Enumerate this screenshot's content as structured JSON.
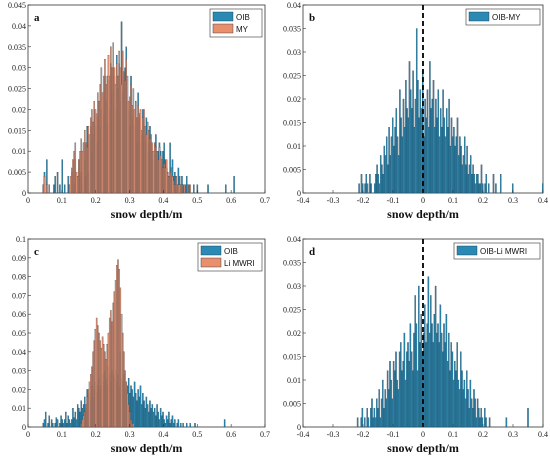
{
  "colors": {
    "blue": "#2a8ab4",
    "orange": "#ea8f6b",
    "edge": "#1b2f3e",
    "axis": "#333333",
    "zero_line": "#000000"
  },
  "chart_data": [
    {
      "type": "bar",
      "panel_label": "a",
      "xlabel": "snow depth/m",
      "xlim": [
        0,
        0.7
      ],
      "ylim": [
        0,
        0.045
      ],
      "xticks": [
        "0",
        "0.1",
        "0.2",
        "0.3",
        "0.4",
        "0.5",
        "0.6",
        "0.7"
      ],
      "yticks": [
        "0",
        "0.005",
        "0.01",
        "0.015",
        "0.02",
        "0.025",
        "0.03",
        "0.035",
        "0.04",
        "0.045"
      ],
      "legend": "top-right",
      "bin_start": 0.04,
      "bin_width": 0.0035,
      "series": [
        {
          "name": "OIB",
          "color": "blue",
          "values": [
            0,
            0.002,
            0.005,
            0,
            0.008,
            0,
            0.002,
            0,
            0,
            0,
            0.002,
            0.004,
            0,
            0.005,
            0,
            0.002,
            0,
            0.008,
            0,
            0.002,
            0,
            0,
            0.004,
            0.002,
            0,
            0.005,
            0,
            0.002,
            0.008,
            0,
            0.004,
            0.008,
            0.004,
            0.005,
            0.002,
            0.012,
            0.008,
            0.004,
            0.016,
            0.005,
            0.012,
            0.016,
            0.01,
            0.014,
            0.02,
            0.016,
            0.012,
            0.018,
            0.022,
            0.016,
            0.02,
            0.024,
            0.019,
            0.028,
            0.022,
            0.016,
            0.027,
            0.02,
            0.031,
            0.024,
            0.03,
            0.028,
            0.02,
            0.033,
            0.025,
            0.031,
            0.022,
            0.041,
            0.024,
            0.027,
            0.03,
            0.035,
            0.022,
            0.02,
            0.016,
            0.028,
            0.018,
            0.02,
            0.016,
            0.022,
            0.012,
            0.024,
            0.018,
            0.012,
            0.014,
            0.02,
            0.016,
            0.012,
            0.018,
            0.01,
            0.012,
            0.016,
            0.012,
            0.01,
            0.008,
            0.012,
            0.014,
            0.008,
            0.01,
            0.012,
            0.01,
            0.006,
            0.01,
            0.012,
            0.008,
            0.006,
            0.005,
            0.004,
            0.012,
            0.006,
            0.008,
            0.004,
            0.005,
            0.004,
            0.002,
            0.006,
            0.004,
            0.002,
            0.004,
            0.002,
            0,
            0.002,
            0.004,
            0,
            0.002,
            0,
            0,
            0,
            0.002,
            0,
            0,
            0.002,
            0,
            0,
            0,
            0,
            0,
            0,
            0,
            0,
            0.002,
            0,
            0,
            0,
            0,
            0,
            0,
            0,
            0,
            0,
            0,
            0,
            0,
            0,
            0,
            0.002,
            0,
            0,
            0,
            0,
            0,
            0,
            0.004
          ]
        },
        {
          "name": "MY",
          "color": "orange",
          "values": [
            0,
            0.002,
            0.004,
            0,
            0.002,
            0,
            0.002,
            0,
            0,
            0,
            0,
            0,
            0,
            0,
            0,
            0,
            0,
            0,
            0,
            0,
            0,
            0,
            0,
            0.002,
            0.004,
            0.006,
            0.008,
            0.01,
            0.012,
            0.005,
            0.004,
            0.008,
            0.01,
            0.013,
            0.01,
            0.012,
            0.015,
            0.012,
            0.011,
            0.016,
            0.014,
            0.018,
            0.02,
            0.017,
            0.022,
            0.02,
            0.019,
            0.024,
            0.022,
            0.026,
            0.03,
            0.024,
            0.028,
            0.032,
            0.026,
            0.028,
            0.033,
            0.028,
            0.035,
            0.03,
            0.036,
            0.03,
            0.026,
            0.031,
            0.028,
            0.034,
            0.03,
            0.026,
            0.034,
            0.029,
            0.027,
            0.032,
            0.028,
            0.022,
            0.023,
            0.026,
            0.021,
            0.025,
            0.02,
            0.022,
            0.018,
            0.021,
            0.019,
            0.02,
            0.015,
            0.018,
            0.02,
            0.016,
            0.014,
            0.017,
            0.015,
            0.013,
            0.014,
            0.012,
            0.01,
            0.012,
            0.011,
            0.01,
            0.008,
            0.011,
            0.009,
            0.008,
            0.006,
            0.007,
            0.006,
            0.008,
            0.005,
            0.004,
            0.005,
            0.006,
            0.004,
            0.003,
            0.002,
            0.004,
            0.002,
            0.002,
            0.002,
            0.002,
            0.002,
            0,
            0.002,
            0,
            0,
            0.002,
            0,
            0.002
          ]
        }
      ]
    },
    {
      "type": "bar",
      "panel_label": "b",
      "xlabel": "snow depth/m",
      "xlim": [
        -0.4,
        0.4
      ],
      "ylim": [
        0,
        0.04
      ],
      "xticks": [
        "-0.4",
        "-0.3",
        "-0.2",
        "-0.1",
        "0",
        "0.1",
        "0.2",
        "0.3",
        "0.4"
      ],
      "yticks": [
        "0",
        "0.005",
        "0.01",
        "0.015",
        "0.02",
        "0.025",
        "0.03",
        "0.035",
        "0.04"
      ],
      "legend": "top-right",
      "zero_line": true,
      "bin_start": -0.215,
      "bin_width": 0.004,
      "series": [
        {
          "name": "OIB-MY",
          "color": "blue",
          "values": [
            0.002,
            0,
            0.004,
            0.002,
            0,
            0.002,
            0.004,
            0.002,
            0,
            0.004,
            0.002,
            0,
            0,
            0.002,
            0.004,
            0.006,
            0.004,
            0.002,
            0.008,
            0.006,
            0.004,
            0.01,
            0.008,
            0.012,
            0.006,
            0.014,
            0.008,
            0.012,
            0.016,
            0.01,
            0.014,
            0.018,
            0.012,
            0.008,
            0.022,
            0.016,
            0.012,
            0.02,
            0.014,
            0.024,
            0.018,
            0.016,
            0.028,
            0.022,
            0.018,
            0.026,
            0.014,
            0.02,
            0.035,
            0.024,
            0.016,
            0.022,
            0.018,
            0.026,
            0.012,
            0.02,
            0.016,
            0.022,
            0.014,
            0.028,
            0.018,
            0.02,
            0.024,
            0.014,
            0.02,
            0.016,
            0.022,
            0.012,
            0.018,
            0.014,
            0.022,
            0.016,
            0.012,
            0.018,
            0.014,
            0.02,
            0.01,
            0.016,
            0.012,
            0.014,
            0.01,
            0.012,
            0.016,
            0.008,
            0.012,
            0.01,
            0.006,
            0.008,
            0.012,
            0.006,
            0.01,
            0.004,
            0.006,
            0.008,
            0.004,
            0.006,
            0.004,
            0.002,
            0.004,
            0.004,
            0.002,
            0.002,
            0.006,
            0.002,
            0,
            0.002,
            0.004,
            0,
            0.002,
            0,
            0,
            0,
            0.004,
            0,
            0.002,
            0,
            0,
            0,
            0.004,
            0,
            0,
            0,
            0,
            0,
            0,
            0,
            0,
            0,
            0.002,
            0,
            0,
            0,
            0,
            0,
            0,
            0,
            0,
            0,
            0,
            0,
            0,
            0,
            0,
            0,
            0,
            0,
            0,
            0,
            0,
            0,
            0,
            0,
            0,
            0.002
          ]
        }
      ]
    },
    {
      "type": "bar",
      "panel_label": "c",
      "xlabel": "snow depth/m",
      "xlim": [
        0,
        0.7
      ],
      "ylim": [
        0,
        0.1
      ],
      "xticks": [
        "0",
        "0.1",
        "0.2",
        "0.3",
        "0.4",
        "0.5",
        "0.6",
        "0.7"
      ],
      "yticks": [
        "0",
        "0.01",
        "0.02",
        "0.03",
        "0.04",
        "0.05",
        "0.06",
        "0.07",
        "0.08",
        "0.09",
        "0.1"
      ],
      "legend": "top-right",
      "bin_start": 0.04,
      "bin_width": 0.0035,
      "series": [
        {
          "name": "OIB",
          "color": "blue",
          "values": [
            0,
            0.002,
            0.004,
            0.008,
            0,
            0.002,
            0.006,
            0,
            0.004,
            0.002,
            0,
            0.002,
            0.005,
            0.004,
            0,
            0.002,
            0.006,
            0.004,
            0.002,
            0.004,
            0.008,
            0.002,
            0.006,
            0.004,
            0.002,
            0.004,
            0.01,
            0.005,
            0.008,
            0.004,
            0.012,
            0.01,
            0.008,
            0.014,
            0.01,
            0.012,
            0.016,
            0.01,
            0.02,
            0.016,
            0.018,
            0.014,
            0.022,
            0.016,
            0.02,
            0.024,
            0.018,
            0.022,
            0.026,
            0.02,
            0.022,
            0.028,
            0.024,
            0.03,
            0.026,
            0.022,
            0.032,
            0.028,
            0.024,
            0.03,
            0.028,
            0.026,
            0.03,
            0.024,
            0.028,
            0.022,
            0.04,
            0.026,
            0.024,
            0.028,
            0.02,
            0.024,
            0.022,
            0.026,
            0.018,
            0.022,
            0.02,
            0.016,
            0.024,
            0.018,
            0.014,
            0.02,
            0.016,
            0.022,
            0.012,
            0.018,
            0.014,
            0.01,
            0.016,
            0.012,
            0.008,
            0.014,
            0.01,
            0.012,
            0.008,
            0.01,
            0.006,
            0.012,
            0.008,
            0.004,
            0.01,
            0.006,
            0.008,
            0.004,
            0.002,
            0.006,
            0.004,
            0.008,
            0.002,
            0.004,
            0.006,
            0.002,
            0.004,
            0,
            0.002,
            0.004,
            0,
            0.002,
            0,
            0.002,
            0,
            0,
            0.002,
            0,
            0,
            0.002,
            0,
            0,
            0,
            0.002,
            0,
            0,
            0,
            0,
            0,
            0,
            0,
            0,
            0,
            0,
            0,
            0,
            0,
            0,
            0,
            0,
            0,
            0,
            0,
            0,
            0,
            0,
            0,
            0,
            0.004
          ]
        },
        {
          "name": "Li MWRI",
          "color": "orange",
          "values": [
            0,
            0,
            0,
            0,
            0,
            0,
            0,
            0,
            0,
            0,
            0,
            0,
            0,
            0,
            0,
            0,
            0,
            0,
            0,
            0,
            0,
            0,
            0,
            0,
            0,
            0,
            0,
            0,
            0,
            0,
            0,
            0,
            0,
            0.002,
            0.004,
            0.006,
            0.008,
            0.012,
            0.016,
            0.02,
            0.024,
            0.028,
            0.032,
            0.04,
            0.046,
            0.052,
            0.058,
            0.054,
            0.05,
            0.046,
            0.042,
            0.048,
            0.044,
            0.04,
            0.036,
            0.044,
            0.05,
            0.058,
            0.062,
            0.056,
            0.066,
            0.072,
            0.078,
            0.086,
            0.089,
            0.084,
            0.074,
            0.06,
            0.05,
            0.04,
            0.03,
            0.024,
            0.018,
            0.012,
            0.008,
            0.004,
            0.002,
            0.002,
            0,
            0,
            0,
            0,
            0,
            0,
            0,
            0,
            0,
            0,
            0,
            0,
            0,
            0,
            0,
            0,
            0,
            0,
            0,
            0,
            0,
            0,
            0,
            0,
            0,
            0,
            0,
            0,
            0,
            0,
            0,
            0,
            0,
            0,
            0,
            0,
            0,
            0,
            0,
            0,
            0,
            0,
            0,
            0,
            0,
            0,
            0,
            0,
            0,
            0,
            0,
            0
          ]
        }
      ]
    },
    {
      "type": "bar",
      "panel_label": "d",
      "xlabel": "snow depth/m",
      "xlim": [
        -0.4,
        0.4
      ],
      "ylim": [
        0,
        0.04
      ],
      "xticks": [
        "-0.4",
        "-0.3",
        "-0.2",
        "-0.1",
        "0",
        "0.1",
        "0.2",
        "0.3",
        "0.4"
      ],
      "yticks": [
        "0",
        "0.005",
        "0.01",
        "0.015",
        "0.02",
        "0.025",
        "0.03",
        "0.035",
        "0.04"
      ],
      "legend": "top-right",
      "zero_line": true,
      "bin_start": -0.22,
      "bin_width": 0.004,
      "series": [
        {
          "name": "OIB-Li MWRI",
          "color": "blue",
          "values": [
            0.002,
            0,
            0,
            0.002,
            0.004,
            0,
            0.002,
            0,
            0.004,
            0.002,
            0,
            0.004,
            0.006,
            0.002,
            0.004,
            0.002,
            0.006,
            0.004,
            0.008,
            0.002,
            0.006,
            0.01,
            0.004,
            0.008,
            0.006,
            0.012,
            0.008,
            0.014,
            0.01,
            0.006,
            0.014,
            0.012,
            0.016,
            0.01,
            0.008,
            0.016,
            0.018,
            0.012,
            0.014,
            0.02,
            0.01,
            0.016,
            0.018,
            0.014,
            0.022,
            0.016,
            0.012,
            0.02,
            0.028,
            0.022,
            0.012,
            0.03,
            0.018,
            0.024,
            0.016,
            0.02,
            0.026,
            0.018,
            0.022,
            0.032,
            0.02,
            0.028,
            0.022,
            0.018,
            0.024,
            0.03,
            0.02,
            0.022,
            0.018,
            0.026,
            0.02,
            0.016,
            0.022,
            0.018,
            0.024,
            0.014,
            0.02,
            0.012,
            0.018,
            0.016,
            0.01,
            0.014,
            0.012,
            0.018,
            0.01,
            0.008,
            0.016,
            0.012,
            0.008,
            0.01,
            0.006,
            0.012,
            0.008,
            0.004,
            0.01,
            0.006,
            0.004,
            0.008,
            0.006,
            0.002,
            0.006,
            0.004,
            0.002,
            0.004,
            0.002,
            0,
            0.004,
            0.002,
            0,
            0,
            0.002,
            0,
            0,
            0,
            0,
            0,
            0,
            0,
            0,
            0,
            0,
            0,
            0,
            0,
            0.002,
            0,
            0,
            0,
            0,
            0,
            0,
            0,
            0,
            0,
            0,
            0,
            0,
            0,
            0,
            0,
            0,
            0,
            0.004
          ]
        }
      ]
    }
  ]
}
